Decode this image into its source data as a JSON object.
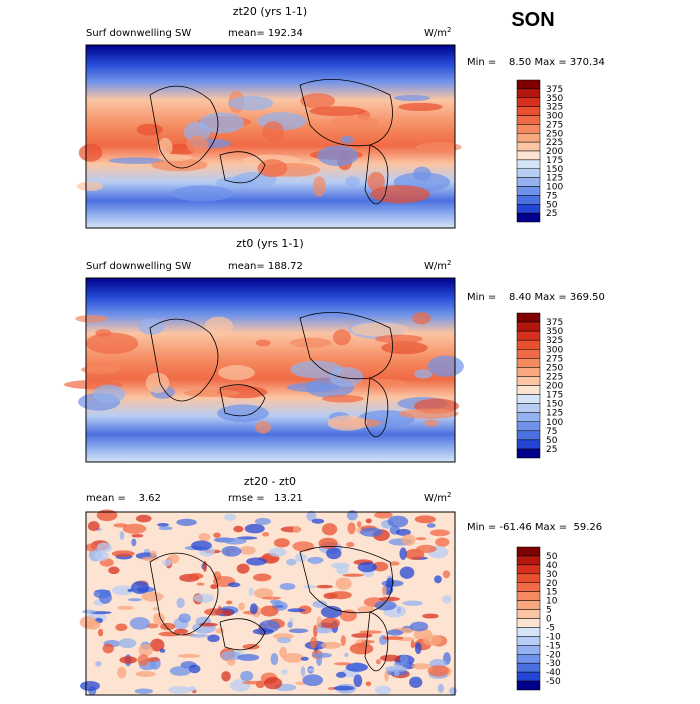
{
  "season": "SON",
  "panels": [
    {
      "title": "zt20 (yrs 1-1)",
      "variable": "Surf downwelling SW",
      "mean": "mean= 192.34",
      "units": "W/m",
      "units_sup": "2",
      "range": "Min =    8.50 Max = 370.34",
      "colorbar": {
        "labels": [
          "375",
          "350",
          "325",
          "300",
          "275",
          "250",
          "225",
          "200",
          "175",
          "150",
          "125",
          "100",
          "75",
          "50",
          "25"
        ],
        "colors": [
          "#7f0000",
          "#b2160c",
          "#d7301f",
          "#e8502f",
          "#f06a45",
          "#f5895f",
          "#f8a77f",
          "#fbc5a3",
          "#fde3d2",
          "#d6e4f7",
          "#b7cdf3",
          "#93b2ef",
          "#6f93ea",
          "#4b70e0",
          "#2347d4",
          "#00008b"
        ]
      }
    },
    {
      "title": "zt0 (yrs 1-1)",
      "variable": "Surf downwelling SW",
      "mean": "mean= 188.72",
      "units": "W/m",
      "units_sup": "2",
      "range": "Min =    8.40 Max = 369.50",
      "colorbar": {
        "labels": [
          "375",
          "350",
          "325",
          "300",
          "275",
          "250",
          "225",
          "200",
          "175",
          "150",
          "125",
          "100",
          "75",
          "50",
          "25"
        ],
        "colors": [
          "#7f0000",
          "#b2160c",
          "#d7301f",
          "#e8502f",
          "#f06a45",
          "#f5895f",
          "#f8a77f",
          "#fbc5a3",
          "#fde3d2",
          "#d6e4f7",
          "#b7cdf3",
          "#93b2ef",
          "#6f93ea",
          "#4b70e0",
          "#2347d4",
          "#00008b"
        ]
      }
    },
    {
      "title": "zt20 - zt0",
      "variable": "mean =    3.62",
      "mean": "rmse =   13.21",
      "units": "W/m",
      "units_sup": "2",
      "range": "Min = -61.46 Max =  59.26",
      "colorbar": {
        "labels": [
          "50",
          "40",
          "30",
          "20",
          "15",
          "10",
          "5",
          "0",
          "-5",
          "-10",
          "-15",
          "-20",
          "-30",
          "-40",
          "-50"
        ],
        "colors": [
          "#7f0000",
          "#b2160c",
          "#d7301f",
          "#e8502f",
          "#f06a45",
          "#f5895f",
          "#f8a77f",
          "#fbc5a3",
          "#fde3d2",
          "#d6e4f7",
          "#b7cdf3",
          "#93b2ef",
          "#6f93ea",
          "#4b70e0",
          "#2347d4",
          "#00008b"
        ]
      }
    }
  ]
}
